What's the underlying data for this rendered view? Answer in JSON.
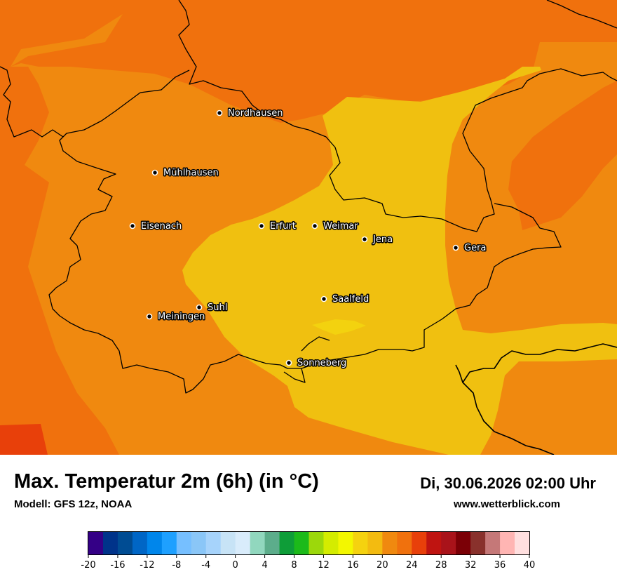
{
  "header": {
    "title": "Max. Temperatur 2m (6h) (in °C)",
    "model": "Modell: GFS 12z, NOAA",
    "datetime": "Di, 30.06.2026 02:00 Uhr",
    "website": "www.wetterblick.com"
  },
  "map": {
    "cities": [
      {
        "name": "Nordhausen"
      },
      {
        "name": "Mühlhausen"
      },
      {
        "name": "Eisenach"
      },
      {
        "name": "Erfurt"
      },
      {
        "name": "Weimar"
      },
      {
        "name": "Jena"
      },
      {
        "name": "Gera"
      },
      {
        "name": "Suhl"
      },
      {
        "name": "Meiningen"
      },
      {
        "name": "Saalfeld"
      },
      {
        "name": "Sonneberg"
      }
    ],
    "colors": {
      "temp_18_20": "#f0c010",
      "temp_20_22": "#f0890f",
      "temp_22_24": "#f0710d",
      "temp_24_26": "#e8400a",
      "border": "#000000"
    }
  },
  "legend": {
    "colors": [
      "#340086",
      "#00338a",
      "#004c93",
      "#0066c6",
      "#0086eb",
      "#1ea0ff",
      "#76bfff",
      "#8ac6f7",
      "#a6d3fb",
      "#c7e3f6",
      "#d9ecfb",
      "#91d7be",
      "#5cad8b",
      "#0e9d38",
      "#1cba1a",
      "#9cd80b",
      "#d4ec00",
      "#f3f700",
      "#f5d20f",
      "#f3bb10",
      "#f0890f",
      "#f0710d",
      "#e8400a",
      "#bf1411",
      "#a9131a",
      "#7b0006",
      "#89312c",
      "#c57878",
      "#ffb5b3",
      "#ffdfdf"
    ],
    "tick_labels": [
      "-20",
      "-16",
      "-12",
      "-8",
      "-4",
      "0",
      "4",
      "8",
      "12",
      "16",
      "20",
      "24",
      "28",
      "32",
      "36",
      "40"
    ]
  }
}
